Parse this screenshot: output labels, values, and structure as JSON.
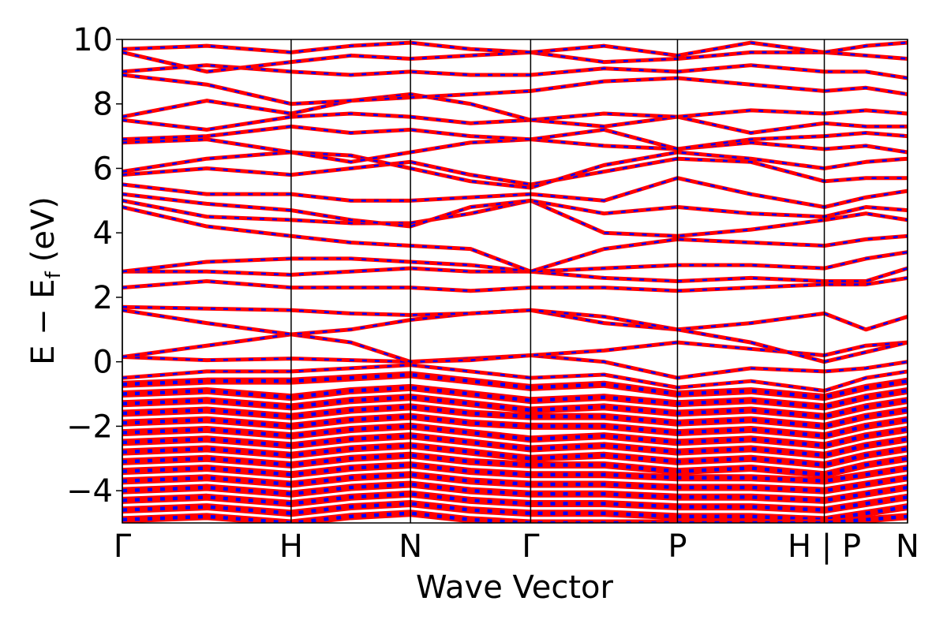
{
  "chart_data": {
    "type": "band-structure",
    "xlabel": "Wave Vector",
    "ylabel": {
      "main": "E − E",
      "sub": "f",
      "unit": "(eV)"
    },
    "xlim": [
      0,
      1
    ],
    "ylim": [
      -5,
      10
    ],
    "xticks": [
      {
        "value": 0,
        "label": "Γ"
      },
      {
        "value": 0.215,
        "label": "H"
      },
      {
        "value": 0.367,
        "label": "N"
      },
      {
        "value": 0.52,
        "label": "Γ"
      },
      {
        "value": 0.707,
        "label": "P"
      },
      {
        "value": 0.894,
        "label": "H | P"
      },
      {
        "value": 1,
        "label": "N"
      }
    ],
    "yticks": [
      {
        "value": -4,
        "label": "−4"
      },
      {
        "value": -2,
        "label": "−2"
      },
      0,
      2,
      4,
      6,
      8,
      10
    ],
    "line_colors": [
      "#ff0000",
      "#0000ff"
    ],
    "x": [
      0,
      0.1075,
      0.215,
      0.291,
      0.367,
      0.4435,
      0.52,
      0.6135,
      0.707,
      0.8005,
      0.894,
      0.947,
      1
    ],
    "bands": [
      [
        0.15,
        0.05,
        0.1,
        0.05,
        0.0,
        0.1,
        0.2,
        0.0,
        -0.5,
        -0.2,
        -0.3,
        -0.2,
        0.0
      ],
      [
        0.15,
        0.5,
        0.85,
        0.6,
        0.0,
        0.05,
        0.2,
        0.35,
        0.6,
        0.4,
        0.2,
        0.5,
        0.6
      ],
      [
        1.6,
        1.2,
        0.85,
        1.0,
        1.3,
        1.5,
        1.6,
        1.2,
        1.0,
        1.2,
        1.5,
        1.0,
        1.4
      ],
      [
        1.7,
        1.65,
        1.6,
        1.5,
        1.45,
        1.5,
        1.6,
        1.4,
        1.0,
        0.6,
        0.0,
        0.3,
        0.6
      ],
      [
        2.3,
        2.5,
        2.3,
        2.3,
        2.3,
        2.2,
        2.3,
        2.3,
        2.2,
        2.3,
        2.4,
        2.4,
        2.6
      ],
      [
        2.8,
        2.8,
        2.7,
        2.8,
        2.9,
        2.8,
        2.8,
        2.6,
        2.5,
        2.6,
        2.5,
        2.5,
        2.9
      ],
      [
        2.8,
        3.1,
        3.2,
        3.2,
        3.1,
        3.0,
        2.8,
        2.9,
        3.0,
        3.0,
        2.9,
        3.2,
        3.4
      ],
      [
        4.8,
        4.2,
        3.9,
        3.7,
        3.6,
        3.5,
        2.8,
        3.5,
        3.8,
        3.7,
        3.6,
        3.8,
        3.9
      ],
      [
        5.0,
        4.5,
        4.4,
        4.3,
        4.3,
        4.6,
        5.0,
        4.0,
        3.9,
        4.1,
        4.4,
        4.6,
        4.4
      ],
      [
        5.2,
        4.9,
        4.7,
        4.4,
        4.2,
        4.8,
        5.0,
        4.6,
        4.8,
        4.6,
        4.5,
        4.8,
        4.7
      ],
      [
        5.5,
        5.2,
        5.2,
        5.0,
        5.0,
        5.1,
        5.2,
        5.0,
        5.7,
        5.2,
        4.8,
        5.1,
        5.3
      ],
      [
        5.8,
        6.0,
        5.8,
        6.0,
        6.2,
        5.8,
        5.5,
        5.9,
        6.3,
        6.2,
        5.6,
        5.7,
        5.7
      ],
      [
        5.9,
        6.3,
        6.5,
        6.4,
        6.0,
        5.6,
        5.4,
        6.1,
        6.5,
        6.3,
        6.0,
        6.2,
        6.3
      ],
      [
        6.8,
        6.9,
        6.5,
        6.2,
        6.5,
        6.8,
        6.9,
        6.7,
        6.6,
        6.8,
        6.6,
        6.7,
        6.5
      ],
      [
        6.9,
        7.0,
        7.3,
        7.1,
        7.2,
        7.0,
        6.9,
        7.2,
        6.6,
        6.9,
        7.0,
        7.1,
        7.0
      ],
      [
        7.5,
        7.2,
        7.6,
        7.7,
        7.6,
        7.4,
        7.5,
        7.3,
        7.6,
        7.1,
        7.4,
        7.3,
        7.3
      ],
      [
        7.6,
        8.1,
        7.7,
        8.1,
        8.3,
        8.0,
        7.5,
        7.7,
        7.6,
        7.8,
        7.7,
        7.8,
        7.7
      ],
      [
        8.9,
        8.6,
        8.0,
        8.1,
        8.2,
        8.3,
        8.4,
        8.7,
        8.8,
        8.6,
        8.4,
        8.5,
        8.3
      ],
      [
        9.0,
        9.2,
        9.0,
        8.9,
        9.0,
        8.9,
        8.9,
        9.1,
        9.0,
        9.2,
        9.0,
        9.0,
        8.8
      ],
      [
        9.6,
        9.0,
        9.3,
        9.5,
        9.4,
        9.5,
        9.6,
        9.3,
        9.4,
        9.6,
        9.6,
        9.5,
        9.4
      ],
      [
        9.7,
        9.8,
        9.6,
        9.8,
        9.9,
        9.7,
        9.6,
        9.8,
        9.5,
        9.9,
        9.6,
        9.8,
        9.9
      ],
      [
        -0.5,
        -0.3,
        -0.3,
        -0.2,
        -0.1,
        -0.3,
        -0.5,
        -0.4,
        -0.8,
        -0.6,
        -0.9,
        -0.5,
        -0.3
      ],
      [
        -0.7,
        -0.6,
        -0.6,
        -0.5,
        -0.4,
        -0.6,
        -0.8,
        -0.7,
        -1.0,
        -0.9,
        -1.1,
        -0.8,
        -0.6
      ],
      [
        -1.0,
        -0.9,
        -1.1,
        -0.9,
        -0.8,
        -1.0,
        -1.2,
        -1.1,
        -1.3,
        -1.2,
        -1.4,
        -1.1,
        -0.9
      ],
      [
        -1.3,
        -1.2,
        -1.4,
        -1.2,
        -1.1,
        -1.3,
        -1.5,
        -1.4,
        -1.6,
        -1.5,
        -1.7,
        -1.4,
        -1.2
      ],
      [
        -1.6,
        -1.5,
        -1.7,
        -1.5,
        -1.4,
        -1.6,
        -1.7,
        -1.7,
        -1.9,
        -1.8,
        -2.0,
        -1.7,
        -1.5
      ],
      [
        -1.9,
        -1.8,
        -2.0,
        -1.8,
        -1.7,
        -1.9,
        -2.0,
        -2.0,
        -2.2,
        -2.1,
        -2.3,
        -2.0,
        -1.8
      ],
      [
        -2.2,
        -2.1,
        -2.3,
        -2.1,
        -2.0,
        -2.2,
        -2.4,
        -2.3,
        -2.5,
        -2.4,
        -2.6,
        -2.3,
        -2.1
      ],
      [
        -2.5,
        -2.4,
        -2.6,
        -2.4,
        -2.3,
        -2.5,
        -2.7,
        -2.6,
        -2.8,
        -2.7,
        -2.9,
        -2.6,
        -2.4
      ],
      [
        -2.8,
        -2.7,
        -2.9,
        -2.7,
        -2.6,
        -2.8,
        -3.0,
        -2.9,
        -3.1,
        -3.0,
        -3.2,
        -2.9,
        -2.7
      ],
      [
        -3.1,
        -3.0,
        -3.2,
        -3.0,
        -2.9,
        -3.1,
        -3.2,
        -3.2,
        -3.4,
        -3.3,
        -3.5,
        -3.2,
        -3.0
      ],
      [
        -3.4,
        -3.3,
        -3.5,
        -3.3,
        -3.2,
        -3.4,
        -3.5,
        -3.5,
        -3.6,
        -3.6,
        -3.7,
        -3.5,
        -3.3
      ],
      [
        -3.7,
        -3.6,
        -3.8,
        -3.6,
        -3.5,
        -3.7,
        -3.8,
        -3.8,
        -3.9,
        -3.9,
        -4.0,
        -3.8,
        -3.6
      ],
      [
        -4.0,
        -3.9,
        -4.1,
        -3.9,
        -3.8,
        -4.0,
        -4.1,
        -4.1,
        -4.2,
        -4.2,
        -4.3,
        -4.1,
        -3.9
      ],
      [
        -4.3,
        -4.2,
        -4.4,
        -4.2,
        -4.1,
        -4.3,
        -4.4,
        -4.4,
        -4.5,
        -4.5,
        -4.6,
        -4.4,
        -4.2
      ],
      [
        -4.6,
        -4.5,
        -4.7,
        -4.5,
        -4.4,
        -4.6,
        -4.7,
        -4.7,
        -4.8,
        -4.8,
        -4.9,
        -4.7,
        -4.5
      ],
      [
        -4.9,
        -4.8,
        -5.0,
        -4.8,
        -4.7,
        -4.9,
        -5.0,
        -5.0,
        -5.0,
        -5.0,
        -5.0,
        -4.9,
        -4.8
      ]
    ]
  }
}
